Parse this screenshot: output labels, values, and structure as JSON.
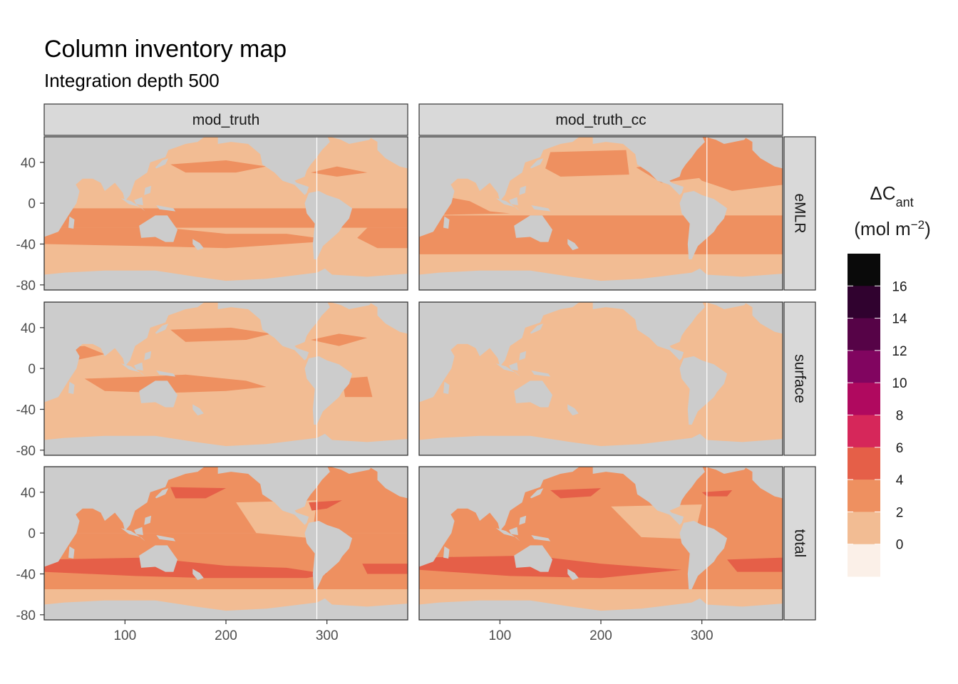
{
  "chart_data": {
    "type": "heatmap",
    "title": "Column inventory map",
    "subtitle": "Integration depth 500",
    "columns": [
      "mod_truth",
      "mod_truth_cc"
    ],
    "rows": [
      "eMLR",
      "surface",
      "total"
    ],
    "x_ticks": [
      "100",
      "200",
      "300"
    ],
    "y_ticks": [
      "40",
      "0",
      "-40",
      "-80"
    ],
    "xlim": [
      20,
      380
    ],
    "ylim": [
      -85,
      65
    ],
    "legend": {
      "title_main": "ΔC",
      "title_sub": "ant",
      "units_prefix": "(mol m",
      "units_sup": "−2",
      "units_suffix": ")",
      "breaks": [
        "16",
        "14",
        "12",
        "10",
        "8",
        "6",
        "4",
        "2",
        "0"
      ],
      "colors": [
        "#fbf0e8",
        "#f2bc93",
        "#ee9060",
        "#e55f48",
        "#d6275a",
        "#b0095f",
        "#810560",
        "#560347",
        "#30022f",
        "#0a0a0a"
      ]
    },
    "panels": [
      {
        "column": "mod_truth",
        "row": "eMLR",
        "dominant_class": "0-2",
        "secondary_class": "2-4",
        "peak_class": "2-4"
      },
      {
        "column": "mod_truth_cc",
        "row": "eMLR",
        "dominant_class": "2-4",
        "secondary_class": "0-2",
        "peak_class": "2-4"
      },
      {
        "column": "mod_truth",
        "row": "surface",
        "dominant_class": "0-2",
        "secondary_class": "2-4",
        "peak_class": "2-4"
      },
      {
        "column": "mod_truth_cc",
        "row": "surface",
        "dominant_class": "0-2",
        "secondary_class": "0-2",
        "peak_class": "0-2"
      },
      {
        "column": "mod_truth",
        "row": "total",
        "dominant_class": "2-4",
        "secondary_class": "0-2",
        "peak_class": "4-6"
      },
      {
        "column": "mod_truth_cc",
        "row": "total",
        "dominant_class": "2-4",
        "secondary_class": "0-2",
        "peak_class": "4-6"
      }
    ],
    "land_color": "#cccccc",
    "strip_color": "#d9d9d9"
  }
}
